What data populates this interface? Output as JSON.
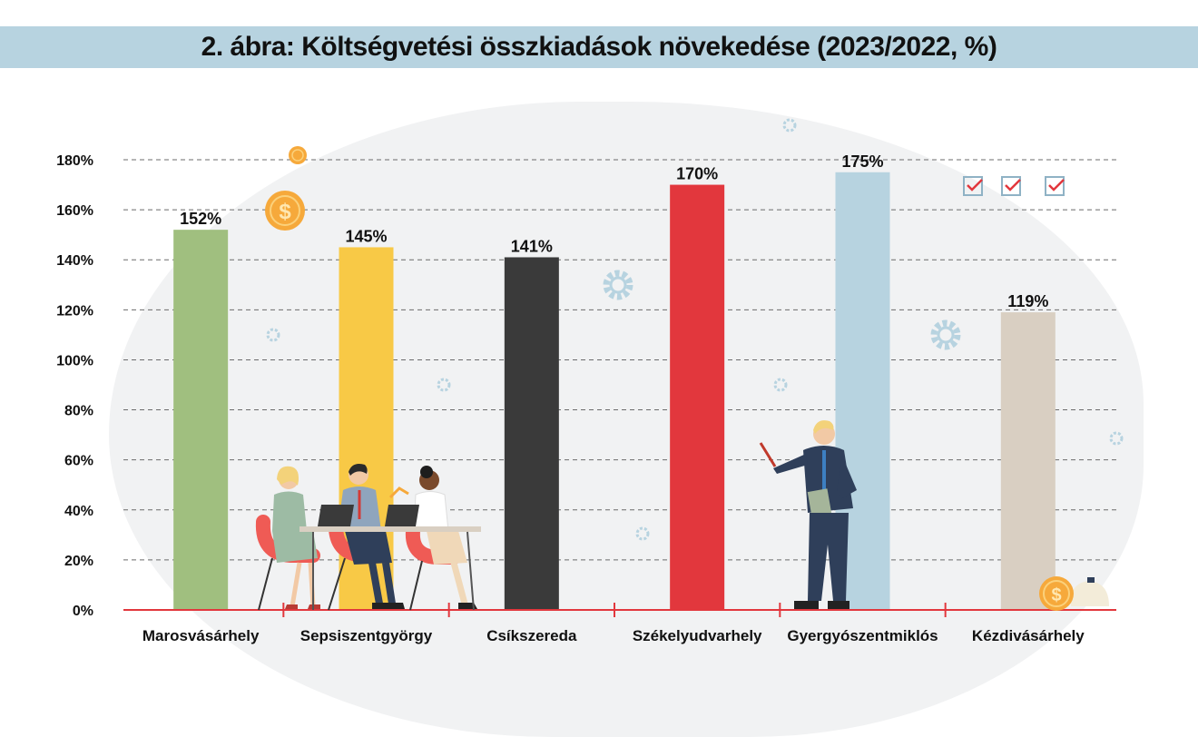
{
  "title": "2. ábra: Költségvetési összkiadások növekedése (2023/2022, %)",
  "chart_data": {
    "type": "bar",
    "categories": [
      "Marosvásárhely",
      "Sepsiszentgyörgy",
      "Csíkszereda",
      "Székelyudvarhely",
      "Gyergyószentmiklós",
      "Kézdivásárhely"
    ],
    "values": [
      152,
      145,
      141,
      170,
      175,
      119
    ],
    "value_labels": [
      "152%",
      "145%",
      "141%",
      "170%",
      "175%",
      "119%"
    ],
    "colors": [
      "#a0bf7f",
      "#f8c946",
      "#3a3a3a",
      "#e2373d",
      "#b7d3e0",
      "#d9cfc2"
    ],
    "y_ticks": [
      0,
      20,
      40,
      60,
      80,
      100,
      120,
      140,
      160,
      180
    ],
    "y_tick_labels": [
      "0%",
      "20%",
      "40%",
      "60%",
      "80%",
      "100%",
      "120%",
      "140%",
      "160%",
      "180%"
    ],
    "ylim": [
      0,
      180
    ],
    "grid": true,
    "grid_style": "dashed",
    "axis_color": "#e2373d",
    "decorations": [
      "people-at-desk-illustration",
      "presenter-illustration",
      "coin-icon",
      "gear-icon",
      "checkbox-icon",
      "money-bag-icon"
    ]
  }
}
